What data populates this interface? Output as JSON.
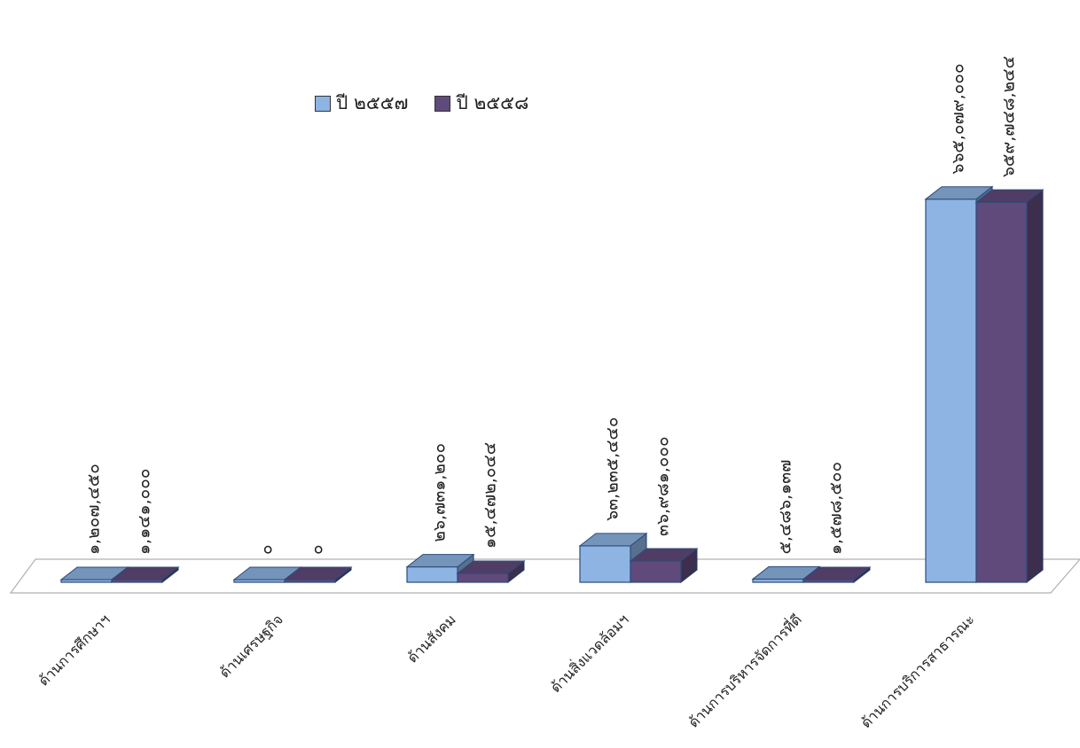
{
  "chart_data": {
    "type": "bar",
    "categories": [
      "ด้านการศึกษาฯ",
      "ด้านเศรษฐกิจ",
      "ด้านสังคม",
      "ด้านสิ่งแวดล้อมฯ",
      "ด้านการบริหารจัดการที่ดี",
      "ด้านการบริการสาธารณะ"
    ],
    "series": [
      {
        "name": "ปี ๒๕๕๗",
        "color": "#8eb4e3",
        "values": [
          1207450,
          0,
          26731200,
          63235440,
          5486137,
          665079000
        ],
        "labels": [
          "๑,๒๐๗,๔๕๐",
          "๐",
          "๒๖,๗๓๑,๒๐๐",
          "๖๓,๒๓๕,๔๔๐",
          "๕,๔๘๖,๑๓๗",
          "๖๖๕,๐๗๙,๐๐๐"
        ]
      },
      {
        "name": "ปี ๒๕๕๘",
        "color": "#604a7b",
        "values": [
          1141000,
          0,
          15472044,
          36981000,
          1578500,
          659748244
        ],
        "labels": [
          "๑,๑๔๑,๐๐๐",
          "๐",
          "๑๕,๔๗๒,๐๔๔",
          "๓๖,๙๘๑,๐๐๐",
          "๑,๕๗๘,๕๐๐",
          "๖๕๙,๗๔๘,๒๔๔"
        ]
      }
    ],
    "ylim": [
      0,
      700000000
    ],
    "legend_position": "top",
    "grid": false
  }
}
